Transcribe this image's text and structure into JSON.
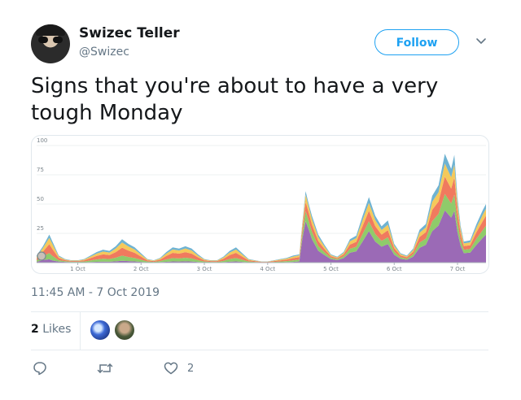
{
  "user": {
    "display_name": "Swizec Teller",
    "handle": "@Swizec",
    "avatar_icon": "user-avatar"
  },
  "follow_button": {
    "label": "Follow",
    "color": "#1da1f2"
  },
  "tweet": {
    "text": "Signs that you're about to have a very tough Monday",
    "timestamp": "11:45 AM - 7 Oct 2019"
  },
  "stats": {
    "likes_count": "2",
    "likes_label": "Likes"
  },
  "actions": {
    "reply_icon": "reply-icon",
    "retweet_icon": "retweet-icon",
    "like_icon": "heart-icon",
    "like_count": "2"
  },
  "chart_data": {
    "type": "area",
    "stacked": true,
    "grid": true,
    "ylim": [
      0,
      100
    ],
    "yticks": [
      "100",
      "75",
      "50",
      "25"
    ],
    "ytick_values": [
      100,
      75,
      50,
      25
    ],
    "xlim": [
      0.35,
      7.45
    ],
    "xticks": [
      "1 Oct",
      "2 Oct",
      "3 Oct",
      "4 Oct",
      "5 Oct",
      "6 Oct",
      "7 Oct"
    ],
    "xtick_values": [
      1,
      2,
      3,
      4,
      5,
      6,
      7
    ],
    "x": [
      0.35,
      0.45,
      0.55,
      0.6,
      0.7,
      0.8,
      0.9,
      1.0,
      1.1,
      1.2,
      1.3,
      1.4,
      1.5,
      1.6,
      1.7,
      1.8,
      1.9,
      2.0,
      2.1,
      2.2,
      2.3,
      2.4,
      2.5,
      2.6,
      2.7,
      2.8,
      2.9,
      3.0,
      3.1,
      3.2,
      3.3,
      3.4,
      3.5,
      3.6,
      3.7,
      3.8,
      3.9,
      4.0,
      4.1,
      4.2,
      4.3,
      4.4,
      4.5,
      4.55,
      4.6,
      4.65,
      4.7,
      4.8,
      4.9,
      5.0,
      5.1,
      5.2,
      5.3,
      5.4,
      5.5,
      5.6,
      5.7,
      5.8,
      5.9,
      6.0,
      6.1,
      6.2,
      6.3,
      6.4,
      6.5,
      6.6,
      6.7,
      6.8,
      6.9,
      6.95,
      7.0,
      7.05,
      7.1,
      7.2,
      7.3,
      7.4,
      7.45
    ],
    "totals": [
      6,
      14,
      24,
      18,
      6,
      3,
      2,
      2,
      3,
      6,
      9,
      11,
      10,
      14,
      20,
      16,
      13,
      8,
      3,
      2,
      4,
      9,
      13,
      12,
      14,
      12,
      7,
      3,
      2,
      2,
      5,
      10,
      13,
      8,
      3,
      2,
      1,
      1,
      2,
      3,
      4,
      6,
      7,
      35,
      61,
      50,
      40,
      24,
      15,
      7,
      5,
      9,
      20,
      23,
      40,
      56,
      40,
      31,
      36,
      16,
      8,
      6,
      12,
      28,
      33,
      57,
      66,
      93,
      80,
      92,
      55,
      31,
      18,
      19,
      33,
      45,
      50
    ],
    "series": [
      {
        "color": "#9b6ab6",
        "fractions": [
          0.12,
          0.15,
          0.12,
          0.1,
          0.15,
          0.2,
          0.2,
          0.2,
          0.1,
          0.08,
          0.08,
          0.08,
          0.08,
          0.08,
          0.08,
          0.08,
          0.08,
          0.08,
          0.1,
          0.1,
          0.1,
          0.08,
          0.08,
          0.08,
          0.08,
          0.08,
          0.08,
          0.1,
          0.1,
          0.1,
          0.08,
          0.08,
          0.08,
          0.08,
          0.1,
          0.1,
          0.1,
          0.1,
          0.1,
          0.1,
          0.1,
          0.1,
          0.15,
          0.6,
          0.58,
          0.56,
          0.5,
          0.42,
          0.42,
          0.42,
          0.42,
          0.42,
          0.42,
          0.42,
          0.45,
          0.48,
          0.45,
          0.44,
          0.44,
          0.42,
          0.4,
          0.4,
          0.42,
          0.45,
          0.46,
          0.47,
          0.48,
          0.48,
          0.48,
          0.48,
          0.47,
          0.46,
          0.45,
          0.45,
          0.46,
          0.47,
          0.48
        ]
      },
      {
        "color": "#8fcb6a",
        "fractions": [
          0.2,
          0.22,
          0.22,
          0.22,
          0.2,
          0.2,
          0.2,
          0.2,
          0.22,
          0.22,
          0.22,
          0.22,
          0.22,
          0.22,
          0.22,
          0.22,
          0.22,
          0.22,
          0.22,
          0.22,
          0.22,
          0.22,
          0.22,
          0.22,
          0.22,
          0.22,
          0.22,
          0.22,
          0.22,
          0.22,
          0.22,
          0.22,
          0.22,
          0.22,
          0.22,
          0.22,
          0.22,
          0.22,
          0.22,
          0.22,
          0.22,
          0.22,
          0.22,
          0.13,
          0.14,
          0.15,
          0.16,
          0.17,
          0.17,
          0.17,
          0.17,
          0.17,
          0.17,
          0.17,
          0.16,
          0.15,
          0.16,
          0.16,
          0.16,
          0.17,
          0.17,
          0.17,
          0.17,
          0.16,
          0.16,
          0.15,
          0.15,
          0.15,
          0.15,
          0.15,
          0.15,
          0.16,
          0.16,
          0.16,
          0.16,
          0.15,
          0.15
        ]
      },
      {
        "color": "#f07a5e",
        "fractions": [
          0.28,
          0.3,
          0.32,
          0.32,
          0.3,
          0.28,
          0.28,
          0.28,
          0.32,
          0.34,
          0.34,
          0.34,
          0.34,
          0.34,
          0.34,
          0.34,
          0.34,
          0.34,
          0.32,
          0.32,
          0.32,
          0.34,
          0.34,
          0.34,
          0.34,
          0.34,
          0.34,
          0.32,
          0.32,
          0.32,
          0.34,
          0.34,
          0.34,
          0.34,
          0.32,
          0.32,
          0.32,
          0.32,
          0.32,
          0.32,
          0.32,
          0.32,
          0.3,
          0.12,
          0.13,
          0.14,
          0.15,
          0.18,
          0.18,
          0.18,
          0.18,
          0.18,
          0.18,
          0.18,
          0.17,
          0.16,
          0.17,
          0.17,
          0.17,
          0.18,
          0.19,
          0.19,
          0.18,
          0.17,
          0.17,
          0.17,
          0.16,
          0.16,
          0.16,
          0.16,
          0.17,
          0.17,
          0.17,
          0.17,
          0.17,
          0.17,
          0.17
        ]
      },
      {
        "color": "#f5c95a",
        "fractions": [
          0.25,
          0.22,
          0.22,
          0.24,
          0.22,
          0.2,
          0.2,
          0.2,
          0.22,
          0.22,
          0.22,
          0.22,
          0.22,
          0.22,
          0.22,
          0.22,
          0.22,
          0.22,
          0.22,
          0.22,
          0.22,
          0.22,
          0.22,
          0.22,
          0.22,
          0.22,
          0.22,
          0.22,
          0.22,
          0.22,
          0.22,
          0.22,
          0.22,
          0.22,
          0.22,
          0.22,
          0.22,
          0.22,
          0.22,
          0.22,
          0.22,
          0.22,
          0.22,
          0.1,
          0.1,
          0.1,
          0.12,
          0.14,
          0.14,
          0.14,
          0.14,
          0.14,
          0.14,
          0.14,
          0.13,
          0.12,
          0.13,
          0.13,
          0.13,
          0.13,
          0.14,
          0.14,
          0.13,
          0.13,
          0.12,
          0.12,
          0.12,
          0.12,
          0.12,
          0.12,
          0.12,
          0.12,
          0.13,
          0.13,
          0.12,
          0.12,
          0.12
        ]
      },
      {
        "color": "#6fb3d2",
        "fractions": [
          0.15,
          0.11,
          0.12,
          0.12,
          0.13,
          0.12,
          0.12,
          0.12,
          0.14,
          0.14,
          0.14,
          0.14,
          0.14,
          0.14,
          0.14,
          0.14,
          0.14,
          0.14,
          0.14,
          0.14,
          0.14,
          0.14,
          0.14,
          0.14,
          0.14,
          0.14,
          0.14,
          0.14,
          0.14,
          0.14,
          0.14,
          0.14,
          0.14,
          0.14,
          0.14,
          0.14,
          0.14,
          0.14,
          0.14,
          0.14,
          0.14,
          0.14,
          0.11,
          0.05,
          0.05,
          0.05,
          0.07,
          0.09,
          0.09,
          0.09,
          0.09,
          0.09,
          0.09,
          0.09,
          0.09,
          0.09,
          0.09,
          0.1,
          0.1,
          0.1,
          0.1,
          0.1,
          0.1,
          0.09,
          0.09,
          0.09,
          0.09,
          0.09,
          0.09,
          0.09,
          0.09,
          0.09,
          0.09,
          0.09,
          0.09,
          0.09,
          0.08
        ]
      }
    ]
  }
}
